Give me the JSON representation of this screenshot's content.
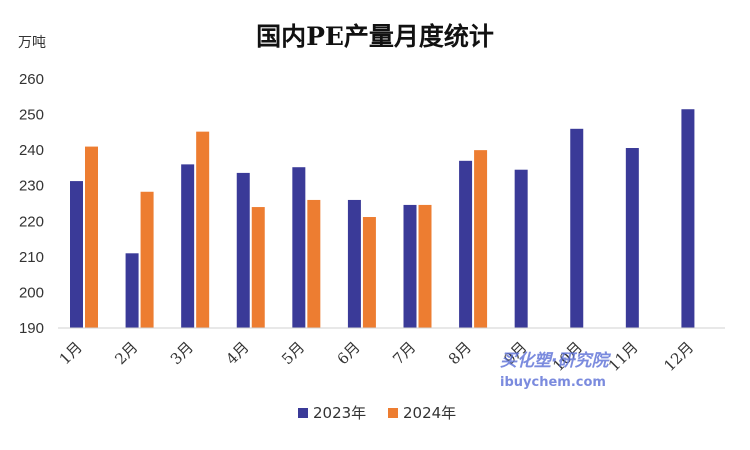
{
  "chart_data": {
    "type": "bar",
    "title": "国内PE产量月度统计",
    "ylabel": "万吨",
    "xlabel": "",
    "categories": [
      "1月",
      "2月",
      "3月",
      "4月",
      "5月",
      "6月",
      "7月",
      "8月",
      "9月",
      "10月",
      "11月",
      "12月"
    ],
    "ylim": [
      190,
      260
    ],
    "yticks": [
      190,
      200,
      210,
      220,
      230,
      240,
      250,
      260
    ],
    "grid": false,
    "legend_position": "bottom",
    "series": [
      {
        "name": "2023年",
        "color": "#3a3a98",
        "values": [
          231.3,
          211.0,
          236.0,
          233.6,
          235.2,
          226.0,
          224.6,
          237.0,
          234.5,
          246.0,
          240.6,
          251.5
        ]
      },
      {
        "name": "2024年",
        "color": "#ed7d31",
        "values": [
          241.0,
          228.3,
          245.2,
          224.0,
          226.0,
          221.2,
          224.6,
          240.0,
          null,
          null,
          null,
          null
        ]
      }
    ]
  },
  "watermark": {
    "cn": "买化塑·研究院",
    "en": "ibuychem.com"
  }
}
